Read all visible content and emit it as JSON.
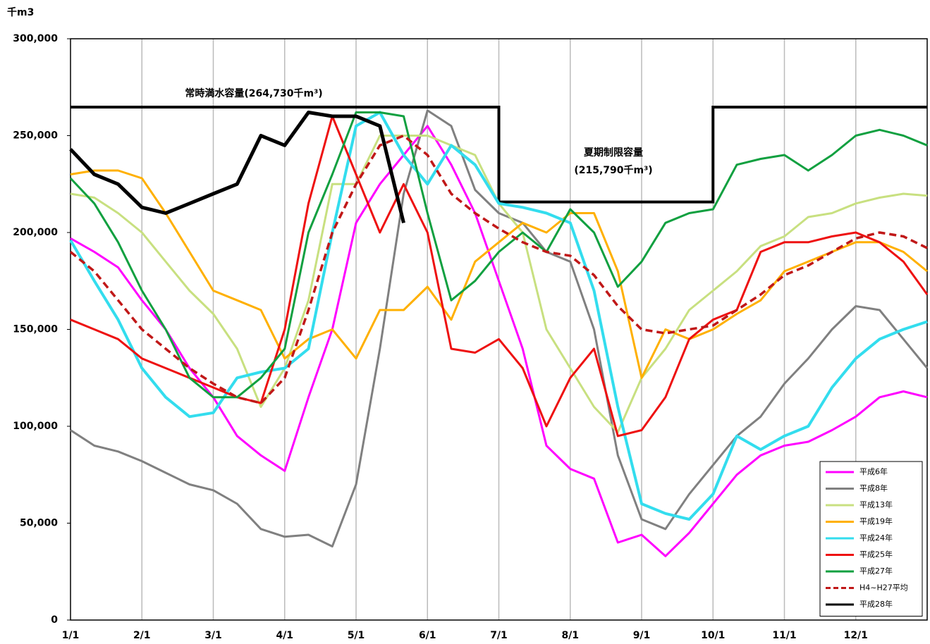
{
  "chart_data": {
    "type": "line",
    "y_axis_label": "千m3",
    "categories": [
      "1/1",
      null,
      null,
      "2/1",
      null,
      null,
      "3/1",
      null,
      null,
      "4/1",
      null,
      null,
      "5/1",
      null,
      null,
      "6/1",
      null,
      null,
      "7/1",
      null,
      null,
      "8/1",
      null,
      null,
      "9/1",
      null,
      null,
      "10/1",
      null,
      null,
      "11/1",
      null,
      null,
      "12/1",
      null,
      null,
      null
    ],
    "ylim": [
      0,
      300000
    ],
    "yticks": [
      0,
      {
        "value": 50000,
        "label": "50,000"
      },
      {
        "value": 100000,
        "label": "100,000"
      },
      {
        "value": 150000,
        "label": "150,000"
      },
      {
        "value": 200000,
        "label": "200,000"
      },
      {
        "value": 250000,
        "label": "250,000"
      },
      {
        "value": 300000,
        "label": "300,000"
      }
    ],
    "grid": "vertical",
    "legend_position": "lower right",
    "capacity": {
      "label": "常時満水容量(264,730千m³)",
      "value": 264730
    },
    "summer_limit": {
      "label": "夏期制限容量",
      "value_label": "(215,790千m³)",
      "value": 215790
    },
    "series": [
      {
        "name": "平成6年",
        "color": "#ff00ff",
        "width": 3,
        "dash": false,
        "values": [
          197000,
          190000,
          182000,
          165000,
          150000,
          130000,
          115000,
          95000,
          85000,
          77000,
          115000,
          150000,
          205000,
          225000,
          240000,
          255000,
          235000,
          210000,
          175000,
          140000,
          90000,
          78000,
          73000,
          40000,
          44000,
          33000,
          45000,
          60000,
          75000,
          85000,
          90000,
          92000,
          98000,
          105000,
          115000,
          118000,
          115000
        ]
      },
      {
        "name": "平成8年",
        "color": "#808080",
        "width": 3,
        "dash": false,
        "values": [
          98000,
          90000,
          87000,
          82000,
          76000,
          70000,
          67000,
          60000,
          47000,
          43000,
          44000,
          38000,
          70000,
          140000,
          220000,
          263000,
          255000,
          222000,
          210000,
          205000,
          190000,
          185000,
          150000,
          85000,
          52000,
          47000,
          65000,
          80000,
          95000,
          105000,
          122000,
          135000,
          150000,
          162000,
          160000,
          145000,
          130000
        ]
      },
      {
        "name": "平成13年",
        "color": "#c8e080",
        "width": 3,
        "dash": false,
        "values": [
          220000,
          218000,
          210000,
          200000,
          185000,
          170000,
          158000,
          140000,
          110000,
          130000,
          165000,
          225000,
          225000,
          250000,
          250000,
          250000,
          245000,
          240000,
          215000,
          200000,
          150000,
          130000,
          110000,
          97000,
          125000,
          140000,
          160000,
          170000,
          180000,
          193000,
          198000,
          208000,
          210000,
          215000,
          218000,
          220000,
          219000
        ]
      },
      {
        "name": "平成19年",
        "color": "#ffb000",
        "width": 3,
        "dash": false,
        "values": [
          230000,
          232000,
          232000,
          228000,
          210000,
          190000,
          170000,
          165000,
          160000,
          135000,
          145000,
          150000,
          135000,
          160000,
          160000,
          172000,
          155000,
          185000,
          195000,
          205000,
          200000,
          210000,
          210000,
          180000,
          125000,
          150000,
          145000,
          150000,
          158000,
          165000,
          180000,
          185000,
          190000,
          195000,
          195000,
          190000,
          180000
        ]
      },
      {
        "name": "平成24年",
        "color": "#33ddee",
        "width": 4,
        "dash": false,
        "values": [
          196000,
          175000,
          155000,
          130000,
          115000,
          105000,
          107000,
          125000,
          128000,
          130000,
          140000,
          200000,
          255000,
          262000,
          240000,
          225000,
          245000,
          235000,
          215000,
          213000,
          210000,
          205000,
          170000,
          110000,
          60000,
          55000,
          52000,
          65000,
          95000,
          88000,
          95000,
          100000,
          120000,
          135000,
          145000,
          150000,
          154000
        ]
      },
      {
        "name": "平成25年",
        "color": "#ee1111",
        "width": 3,
        "dash": false,
        "values": [
          155000,
          150000,
          145000,
          135000,
          130000,
          125000,
          120000,
          115000,
          112000,
          150000,
          215000,
          260000,
          230000,
          200000,
          225000,
          200000,
          140000,
          138000,
          145000,
          130000,
          100000,
          125000,
          140000,
          95000,
          98000,
          115000,
          145000,
          155000,
          160000,
          190000,
          195000,
          195000,
          198000,
          200000,
          195000,
          185000,
          168000
        ]
      },
      {
        "name": "平成27年",
        "color": "#11a040",
        "width": 3,
        "dash": false,
        "values": [
          228000,
          215000,
          195000,
          170000,
          150000,
          125000,
          115000,
          115000,
          125000,
          140000,
          200000,
          230000,
          262000,
          262000,
          260000,
          210000,
          165000,
          175000,
          190000,
          200000,
          190000,
          212000,
          200000,
          172000,
          185000,
          205000,
          210000,
          212000,
          235000,
          238000,
          240000,
          232000,
          240000,
          250000,
          253000,
          250000,
          245000
        ]
      },
      {
        "name": "H4~H27平均",
        "color": "#c01818",
        "width": 3.5,
        "dash": true,
        "values": [
          190000,
          180000,
          165000,
          150000,
          140000,
          130000,
          122000,
          115000,
          112000,
          125000,
          160000,
          200000,
          225000,
          245000,
          250000,
          240000,
          220000,
          210000,
          202000,
          195000,
          190000,
          188000,
          178000,
          162000,
          150000,
          148000,
          150000,
          152000,
          160000,
          168000,
          178000,
          183000,
          190000,
          197000,
          200000,
          198000,
          192000
        ]
      },
      {
        "name": "平成28年",
        "color": "#000000",
        "width": 5,
        "dash": false,
        "values": [
          243000,
          230000,
          225000,
          213000,
          210000,
          215000,
          220000,
          225000,
          250000,
          245000,
          262000,
          260000,
          260000,
          255000,
          205000,
          null,
          null,
          null,
          null,
          null,
          null,
          null,
          null,
          null,
          null,
          null,
          null,
          null,
          null,
          null,
          null,
          null,
          null,
          null,
          null,
          null,
          null
        ]
      }
    ]
  }
}
